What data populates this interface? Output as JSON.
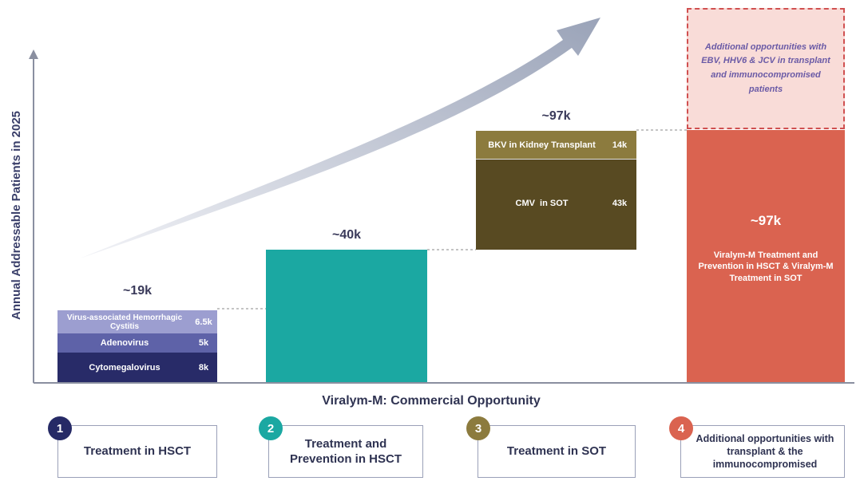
{
  "y_axis_label": "Annual Addressable Patients in 2025",
  "x_axis_label": "Viralym-M: Commercial Opportunity",
  "bars": [
    {
      "total": "~19k",
      "segments": [
        {
          "label": "Virus-associated Hemorrhagic Cystitis",
          "value": "6.5k"
        },
        {
          "label": "Adenovirus",
          "value": "5k"
        },
        {
          "label": "Cytomegalovirus",
          "value": "8k"
        }
      ]
    },
    {
      "total": "~40k"
    },
    {
      "total": "~97k",
      "segments": [
        {
          "label": "BKV in Kidney Transplant",
          "value": "14k"
        },
        {
          "label": "CMV  in SOT",
          "value": "43k"
        }
      ]
    },
    {
      "total": "~97k",
      "description": "Viralym-M Treatment and Prevention in HSCT & Viralym-M Treatment in SOT",
      "note": "Additional opportunities with EBV, HHV6 & JCV in transplant and immunocompromised patients"
    }
  ],
  "steps": [
    {
      "number": "1",
      "label": "Treatment in HSCT"
    },
    {
      "number": "2",
      "label": "Treatment and Prevention in HSCT"
    },
    {
      "number": "3",
      "label": "Treatment in SOT"
    },
    {
      "number": "4",
      "label": "Additional opportunities with transplant & the immunocompromised"
    }
  ]
}
